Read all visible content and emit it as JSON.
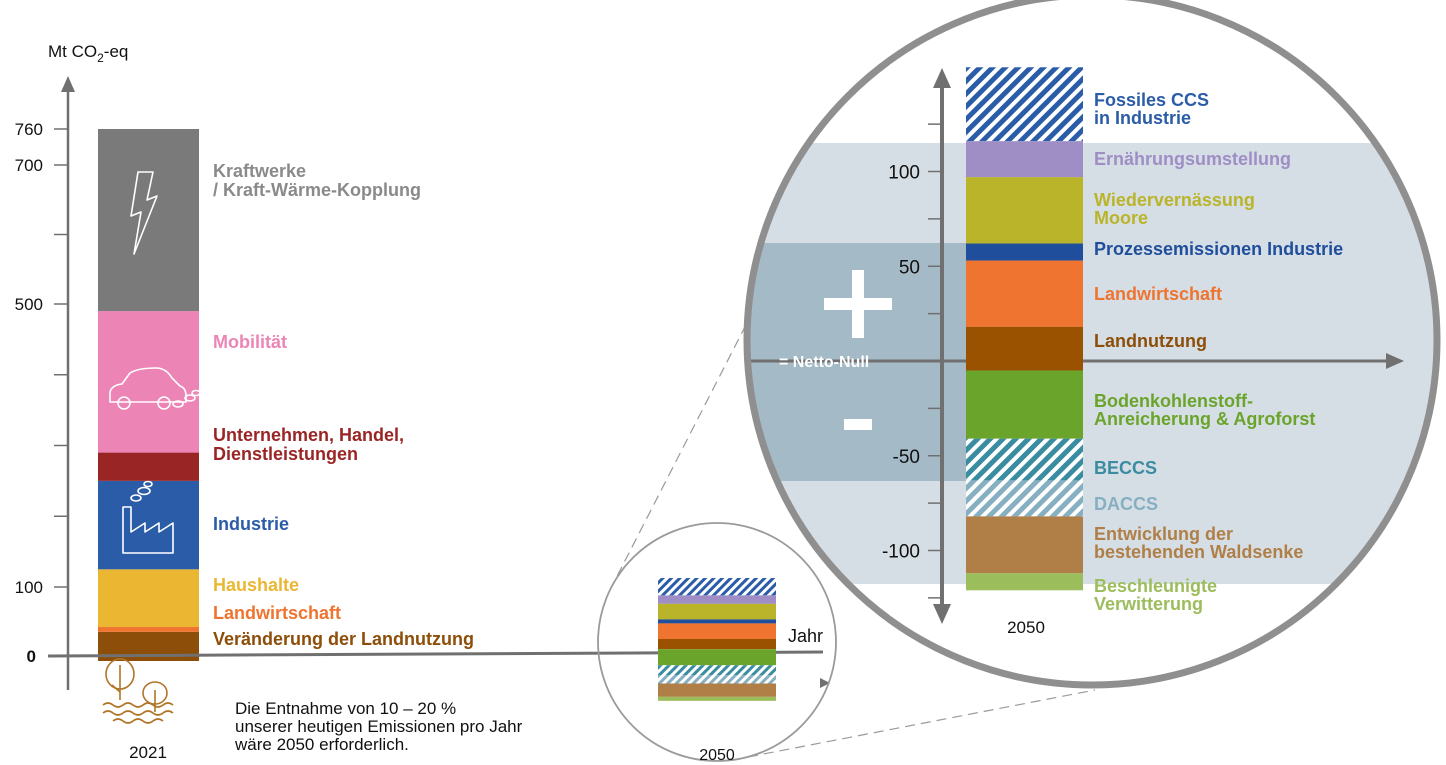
{
  "chart_data": [
    {
      "type": "bar",
      "stacked": true,
      "ylabel": "Mt CO2-eq",
      "ylabel_parts": [
        "Mt CO",
        "2",
        "-eq"
      ],
      "yticks": [
        "0",
        "100",
        "500",
        "700",
        "760"
      ],
      "ylim": [
        -15,
        840
      ],
      "xlabel": "2021",
      "grid": false,
      "segments": [
        {
          "name": "Veränderung der Landnutzung",
          "from": 0,
          "to": 35,
          "color": "#8C4E08",
          "label_color": "#8C4E08"
        },
        {
          "name": "Landwirtschaft",
          "from": 35,
          "to": 42,
          "color": "#EE7430",
          "label_color": "#EE7430"
        },
        {
          "name": "Haushalte",
          "from": 42,
          "to": 125,
          "color": "#EBB733",
          "label_color": "#EBB733"
        },
        {
          "name": "Industrie",
          "from": 125,
          "to": 250,
          "color": "#2A5CA8",
          "label_color": "#2A5CA8"
        },
        {
          "name": "Unternehmen, Handel, Dienstleistungen",
          "from": 250,
          "to": 290,
          "color": "#9A2525",
          "label_color": "#9A2525"
        },
        {
          "name": "Mobilität",
          "from": 290,
          "to": 490,
          "color": "#EC85B6",
          "label_color": "#EC85B6"
        },
        {
          "name": "Kraftwerke / Kraft-Wärme-Kopplung",
          "from": 490,
          "to": 760,
          "color": "#7A7A7A",
          "label_color": "#8A8A8A"
        }
      ],
      "labels": [
        {
          "lines": [
            "Kraftwerke",
            "/ Kraft-Wärme-Kopplung"
          ],
          "color": "#8A8A8A"
        },
        {
          "lines": [
            "Mobilität"
          ],
          "color": "#EC85B6"
        },
        {
          "lines": [
            "Unternehmen, Handel,",
            "Dienstleistungen"
          ],
          "color": "#9A2525"
        },
        {
          "lines": [
            "Industrie"
          ],
          "color": "#2A5CA8"
        },
        {
          "lines": [
            "Haushalte"
          ],
          "color": "#EBB733"
        },
        {
          "lines": [
            "Landwirtschaft"
          ],
          "color": "#EE7430"
        },
        {
          "lines": [
            "Veränderung der Landnutzung"
          ],
          "color": "#8C4E08"
        }
      ],
      "x_axis_label": "Jahr",
      "sink_icon": "trees-water-icon"
    },
    {
      "type": "bar",
      "stacked": true,
      "xlabel": "2050",
      "yticks": [
        "-100",
        "-50",
        "50",
        "100"
      ],
      "ylim": [
        -125,
        130
      ],
      "zero_label": "= Netto-Null",
      "plus_label": "+",
      "minus_label": "-",
      "segments": [
        {
          "name": "Fossiles CCS in Industrie",
          "from": 116,
          "to": 155,
          "color": "#2A5CA8",
          "hatched": true
        },
        {
          "name": "Ernährungsumstellung",
          "from": 97,
          "to": 116,
          "color": "#9E8EC5"
        },
        {
          "name": "Wiedervernässung Moore",
          "from": 62,
          "to": 97,
          "color": "#BAB42B"
        },
        {
          "name": "Prozessemissionen Industrie",
          "from": 53,
          "to": 62,
          "color": "#1F4E9C"
        },
        {
          "name": "Landwirtschaft",
          "from": 18,
          "to": 53,
          "color": "#EE7430"
        },
        {
          "name": "Landnutzung",
          "from": -5,
          "to": 18,
          "color": "#9A5200"
        },
        {
          "name": "Bodenkohlenstoff-Anreicherung & Agroforst",
          "from": -41,
          "to": -5,
          "color": "#6BA42B"
        },
        {
          "name": "BECCS",
          "from": -63,
          "to": -41,
          "color": "#3A8CA0",
          "hatched": true
        },
        {
          "name": "DACCS",
          "from": -82,
          "to": -63,
          "color": "#86B0C1",
          "hatched": true
        },
        {
          "name": "Entwicklung der bestehenden Waldsenke",
          "from": -112,
          "to": -82,
          "color": "#B07F48"
        },
        {
          "name": "Beschleunigte Verwitterung",
          "from": -121,
          "to": -112,
          "color": "#9CBD5C"
        }
      ],
      "labels": [
        {
          "lines": [
            "Fossiles CCS",
            "in Industrie"
          ],
          "color": "#2A5CA8"
        },
        {
          "lines": [
            "Ernährungsumstellung"
          ],
          "color": "#9E8EC5"
        },
        {
          "lines": [
            "Wiedervernässung",
            "Moore"
          ],
          "color": "#BAB42B"
        },
        {
          "lines": [
            "Prozessemissionen Industrie"
          ],
          "color": "#1F4E9C"
        },
        {
          "lines": [
            "Landwirtschaft"
          ],
          "color": "#EE7430"
        },
        {
          "lines": [
            "Landnutzung"
          ],
          "color": "#8C4E08"
        },
        {
          "lines": [
            "Bodenkohlenstoff-",
            "Anreicherung & Agroforst"
          ],
          "color": "#6BA42B"
        },
        {
          "lines": [
            "BECCS"
          ],
          "color": "#3A8CA0"
        },
        {
          "lines": [
            "DACCS"
          ],
          "color": "#86B0C1"
        },
        {
          "lines": [
            "Entwicklung der",
            "bestehenden Waldsenke"
          ],
          "color": "#B07F48"
        },
        {
          "lines": [
            "Beschleunigte",
            "Verwitterung"
          ],
          "color": "#9CBD5C"
        }
      ]
    }
  ],
  "small_inset": {
    "year_label": "2050"
  },
  "annotation": {
    "lines": [
      "Die Entnahme von 10 – 20 %",
      "unserer heutigen Emissionen pro Jahr",
      "wäre 2050 erforderlich."
    ]
  },
  "colors": {
    "axis": "#707070",
    "zoom_band_light": "#D6DEE5",
    "zoom_band_dark": "#A5BAC7",
    "circle_outline": "#8F8F8F"
  }
}
